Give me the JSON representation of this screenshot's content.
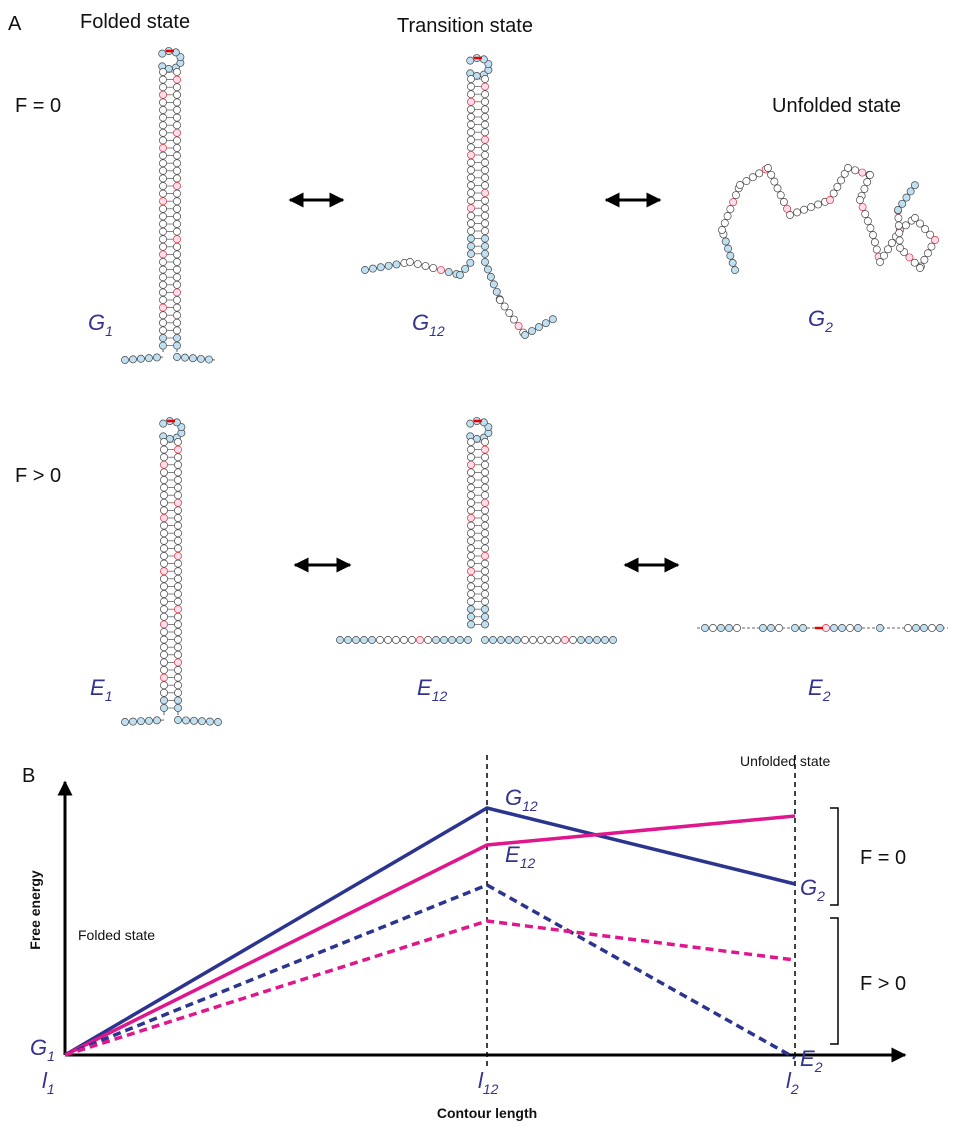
{
  "panel_a": {
    "label": "A",
    "column_titles": [
      "Folded state",
      "Transition state",
      "Unfolded state"
    ],
    "row_labels": [
      "F = 0",
      "F > 0"
    ],
    "states": [
      {
        "letter": "G",
        "sub": "1"
      },
      {
        "letter": "G",
        "sub": "12"
      },
      {
        "letter": "G",
        "sub": "2"
      },
      {
        "letter": "E",
        "sub": "1"
      },
      {
        "letter": "E",
        "sub": "12"
      },
      {
        "letter": "E",
        "sub": "2"
      }
    ]
  },
  "panel_b": {
    "label": "B",
    "y_axis_label": "Free energy",
    "x_axis_label": "Contour length",
    "folded_label": "Folded state",
    "unfolded_label": "Unfolded state",
    "bracket_labels": [
      "F = 0",
      "F > 0"
    ],
    "point_labels": [
      {
        "letter": "G",
        "sub": "1"
      },
      {
        "letter": "G",
        "sub": "12"
      },
      {
        "letter": "G",
        "sub": "2"
      },
      {
        "letter": "E",
        "sub": "12"
      },
      {
        "letter": "E",
        "sub": "2"
      }
    ],
    "x_tick_labels": [
      {
        "letter": "l",
        "sub": "1"
      },
      {
        "letter": "l",
        "sub": "12"
      },
      {
        "letter": "l",
        "sub": "2"
      }
    ]
  }
}
